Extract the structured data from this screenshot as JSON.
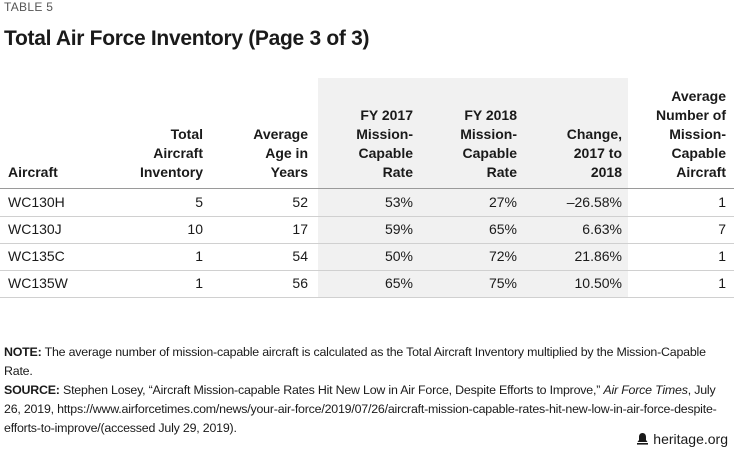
{
  "header": {
    "tag": "TABLE 5",
    "title": "Total Air Force Inventory (Page 3 of 3)"
  },
  "table": {
    "columns": [
      [
        "Aircraft"
      ],
      [
        "Total",
        "Aircraft",
        "Inventory"
      ],
      [
        "Average",
        "Age in",
        "Years"
      ],
      [
        "FY 2017",
        "Mission-",
        "Capable",
        "Rate"
      ],
      [
        "FY 2018",
        "Mission-",
        "Capable",
        "Rate"
      ],
      [
        "Change,",
        "2017 to",
        "2018"
      ],
      [
        "Average",
        "Number of",
        "Mission-",
        "Capable",
        "Aircraft"
      ]
    ],
    "rows": [
      [
        "WC130H",
        "5",
        "52",
        "53%",
        "27%",
        "–26.58%",
        "1"
      ],
      [
        "WC130J",
        "10",
        "17",
        "59%",
        "65%",
        "6.63%",
        "7"
      ],
      [
        "WC135C",
        "1",
        "54",
        "50%",
        "72%",
        "21.86%",
        "1"
      ],
      [
        "WC135W",
        "1",
        "56",
        "65%",
        "75%",
        "10.50%",
        "1"
      ]
    ]
  },
  "note": {
    "label": "NOTE:",
    "text": "The average number of mission-capable aircraft is calculated as the Total Aircraft Inventory multiplied by the Mission-Capable Rate."
  },
  "source": {
    "label": "SOURCE:",
    "before": "Stephen Losey, “Aircraft Mission-capable Rates Hit New Low in Air Force, Despite Efforts to Improve,”",
    "italic": "Air Force Times",
    "after": ", July 26, 2019, https://www.airforcetimes.com/news/your-air-force/2019/07/26/aircraft-mission-capable-rates-hit-new-low-in-air-force-despite-efforts-to-improve/(accessed July 29, 2019)."
  },
  "footer": {
    "site": "heritage.org"
  }
}
